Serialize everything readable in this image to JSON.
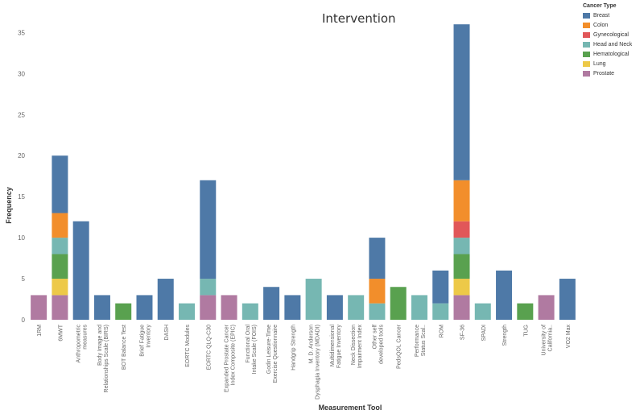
{
  "chart_data": {
    "type": "bar",
    "stacked": true,
    "title": "Intervention",
    "xlabel": "Measurement Tool",
    "ylabel": "Frequency",
    "ylim": [
      0,
      37
    ],
    "yticks": [
      0,
      5,
      10,
      15,
      20,
      25,
      30,
      35
    ],
    "legend": {
      "title": "Cancer Type",
      "position": "top-right"
    },
    "categories": [
      "1RM",
      "6MWT",
      "Anthropometric measures",
      "Body Image and Relationships Scale (BIRS)",
      "BOT Balance Test",
      "Brief Fatigue Inventory",
      "DASH",
      "EORTC Modules",
      "EORTC QLQ-C30",
      "Expanded Prostate Cancer Index Composite (EPIC)",
      "Functional Oral Intake Scale (FOIS)",
      "Godin Leisure-Time Exercise Questionnaire",
      "Handgrip Strength",
      "M. D. Anderson Dysphagia Inventory (MDADI)",
      "Multidimensional Fatigue Inventory",
      "Neck Dissection Impairment Index",
      "Other self developed tools",
      "PedsQOL Cancer",
      "Performance Status Scal..",
      "ROM",
      "SF-36",
      "SPADI",
      "Strength",
      "TUG",
      "University of California..",
      "VO2 Max"
    ],
    "series": [
      {
        "name": "Breast",
        "values": [
          0,
          7,
          12,
          3,
          0,
          3,
          5,
          0,
          12,
          0,
          0,
          4,
          3,
          0,
          3,
          0,
          5,
          0,
          0,
          4,
          19,
          0,
          6,
          0,
          0,
          5
        ]
      },
      {
        "name": "Colon",
        "values": [
          0,
          3,
          0,
          0,
          0,
          0,
          0,
          0,
          0,
          0,
          0,
          0,
          0,
          0,
          0,
          0,
          3,
          0,
          0,
          0,
          5,
          0,
          0,
          0,
          0,
          0
        ]
      },
      {
        "name": "Gynecological",
        "values": [
          0,
          0,
          0,
          0,
          0,
          0,
          0,
          0,
          0,
          0,
          0,
          0,
          0,
          0,
          0,
          0,
          0,
          0,
          0,
          0,
          2,
          0,
          0,
          0,
          0,
          0
        ]
      },
      {
        "name": "Head and Neck",
        "values": [
          0,
          2,
          0,
          0,
          0,
          0,
          0,
          2,
          2,
          0,
          2,
          0,
          0,
          5,
          0,
          3,
          2,
          0,
          3,
          2,
          2,
          2,
          0,
          0,
          0,
          0
        ]
      },
      {
        "name": "Hematological",
        "values": [
          0,
          3,
          0,
          0,
          2,
          0,
          0,
          0,
          0,
          0,
          0,
          0,
          0,
          0,
          0,
          0,
          0,
          4,
          0,
          0,
          3,
          0,
          0,
          2,
          0,
          0
        ]
      },
      {
        "name": "Lung",
        "values": [
          0,
          2,
          0,
          0,
          0,
          0,
          0,
          0,
          0,
          0,
          0,
          0,
          0,
          0,
          0,
          0,
          0,
          0,
          0,
          0,
          2,
          0,
          0,
          0,
          0,
          0
        ]
      },
      {
        "name": "Prostate",
        "values": [
          3,
          3,
          0,
          0,
          0,
          0,
          0,
          0,
          3,
          3,
          0,
          0,
          0,
          0,
          0,
          0,
          0,
          0,
          0,
          0,
          3,
          0,
          0,
          0,
          3,
          0
        ]
      }
    ],
    "colors": {
      "Breast": "#4e79a7",
      "Colon": "#f28e2b",
      "Gynecological": "#e15759",
      "Head and Neck": "#76b7b2",
      "Hematological": "#59a14f",
      "Lung": "#edc948",
      "Prostate": "#b07aa1"
    },
    "grid": false
  }
}
